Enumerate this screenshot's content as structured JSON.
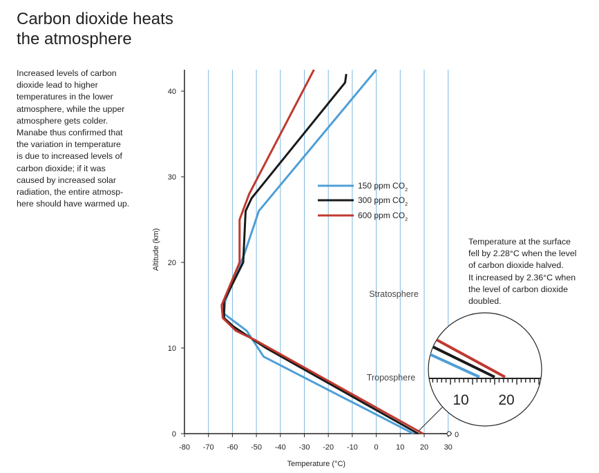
{
  "page": {
    "title_line1": "Carbon dioxide heats",
    "title_line2": "the atmosphere",
    "description": [
      "Increased levels of carbon",
      "dioxide lead to higher",
      "temperatures in the lower",
      "atmosphere, while the upper",
      "atmosphere gets colder.",
      "Manabe thus confirmed that",
      "the variation in temperature",
      "is due to increased levels of",
      "carbon dioxide; if it was",
      "caused by increased solar",
      "radiation, the entire atmosp-",
      "here should have warmed up."
    ],
    "annotation": [
      "Temperature at the surface",
      "fell by 2.28°C when the level",
      "of carbon dioxide halved.",
      "It increased by 2.36°C when",
      "the level of carbon dioxide",
      "doubled."
    ]
  },
  "chart_data": {
    "type": "line",
    "xlabel": "Temperature (°C)",
    "ylabel": "Altitude (km)",
    "xlim": [
      -80,
      30
    ],
    "ylim": [
      0,
      42
    ],
    "x_ticks": [
      "-80",
      "-70",
      "-60",
      "-50",
      "-40",
      "-30",
      "-20",
      "-10",
      "0",
      "10",
      "20",
      "30"
    ],
    "x_tick_values": [
      -80,
      -70,
      -60,
      -50,
      -40,
      -30,
      -20,
      -10,
      0,
      10,
      20,
      30
    ],
    "y_ticks": [
      "0",
      "10",
      "20",
      "30",
      "40"
    ],
    "y_tick_values": [
      0,
      10,
      20,
      30,
      40
    ],
    "grid": "vertical",
    "legend_position": "center-right",
    "series": [
      {
        "name": "150 ppm CO",
        "name_subscript": "2",
        "color": "#4f9fd6",
        "points": [
          [
            15.5,
            0
          ],
          [
            -47,
            9
          ],
          [
            -54,
            12
          ],
          [
            -63.5,
            14
          ],
          [
            -63,
            15.5
          ],
          [
            -55,
            21
          ],
          [
            -49,
            26
          ],
          [
            0,
            42.5
          ]
        ]
      },
      {
        "name": "300 ppm CO",
        "name_subscript": "2",
        "color": "#1a1a1a",
        "points": [
          [
            17.5,
            0
          ],
          [
            -46,
            10
          ],
          [
            -59.5,
            12.5
          ],
          [
            -63.5,
            13.5
          ],
          [
            -63.5,
            15.5
          ],
          [
            -55.5,
            20
          ],
          [
            -54.5,
            26
          ],
          [
            -52,
            27.5
          ],
          [
            -13,
            41
          ],
          [
            -12.5,
            42
          ]
        ]
      },
      {
        "name": "600 ppm CO",
        "name_subscript": "2",
        "color": "#c0392f",
        "points": [
          [
            19.5,
            0
          ],
          [
            -51,
            11
          ],
          [
            -58.5,
            12
          ],
          [
            -64,
            13.5
          ],
          [
            -64.5,
            15
          ],
          [
            -57,
            20
          ],
          [
            -57,
            25
          ],
          [
            -53,
            28
          ],
          [
            -26,
            42.5
          ]
        ]
      }
    ],
    "annotations": {
      "stratosphere": "Stratosphere",
      "troposphere": "Troposphere",
      "surface_marker": "0",
      "zoom_tick_10": "10",
      "zoom_tick_20": "20"
    }
  }
}
